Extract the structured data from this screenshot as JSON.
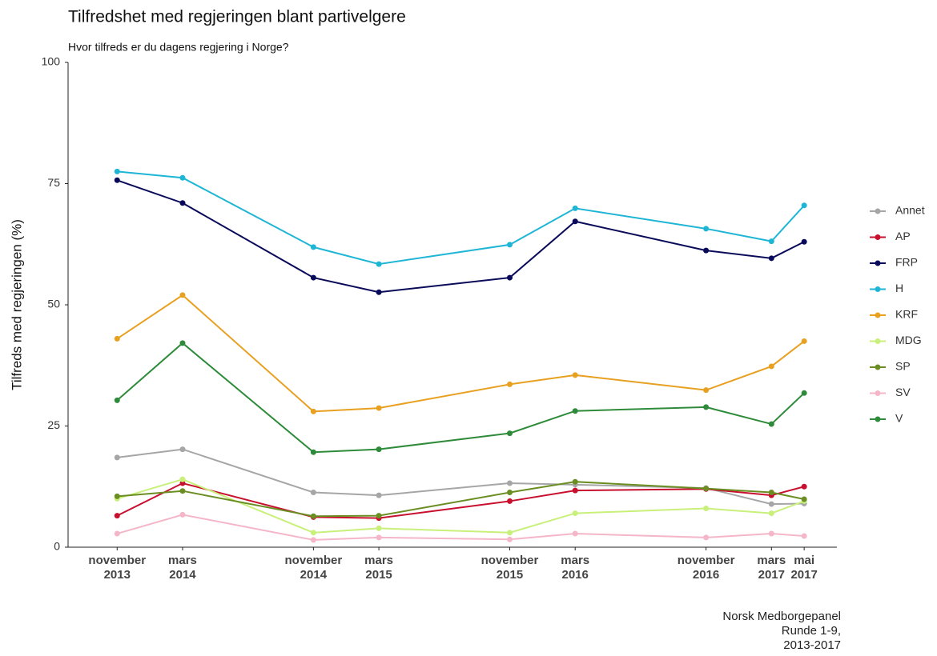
{
  "chart_data": {
    "type": "line",
    "title": "Tilfredshet med regjeringen blant partivelgere",
    "subtitle": "Hvor tilfreds er du dagens regjering i Norge?",
    "y_label": "Tilfreds med regjeringen (%)",
    "caption": [
      "Norsk Medborgepanel",
      "Runde 1-9,",
      "2013-2017"
    ],
    "x": [
      "2013-11",
      "2014-03",
      "2014-11",
      "2015-03",
      "2015-11",
      "2016-03",
      "2016-11",
      "2017-03",
      "2017-05"
    ],
    "xlim": [
      "2013-08",
      "2017-07"
    ],
    "xticks": [
      {
        "value": "2013-11",
        "label": "november 2013"
      },
      {
        "value": "2014-03",
        "label": "mars 2014"
      },
      {
        "value": "2014-11",
        "label": "november 2014"
      },
      {
        "value": "2015-03",
        "label": "mars 2015"
      },
      {
        "value": "2015-11",
        "label": "november 2015"
      },
      {
        "value": "2016-03",
        "label": "mars 2016"
      },
      {
        "value": "2016-11",
        "label": "november 2016"
      },
      {
        "value": "2017-03",
        "label": "mars 2017"
      },
      {
        "value": "2017-05",
        "label": "mai 2017"
      }
    ],
    "ylim": [
      0,
      100
    ],
    "yticks": [
      0,
      25,
      50,
      75,
      100
    ],
    "grid": false,
    "legend": "right",
    "series": [
      {
        "name": "Annet",
        "color": "#a6a6a6",
        "values": [
          18.5,
          20.2,
          11.3,
          10.7,
          13.2,
          12.9,
          12.2,
          8.9,
          9.0
        ]
      },
      {
        "name": "AP",
        "color": "#c8102e",
        "values": [
          6.5,
          13.2,
          6.2,
          6.0,
          9.5,
          11.7,
          12.0,
          10.7,
          12.5
        ]
      },
      {
        "name": "FRP",
        "color": "#0a0a5a",
        "values": [
          75.7,
          71.0,
          55.6,
          52.6,
          55.6,
          67.2,
          61.2,
          59.6,
          63.0
        ]
      },
      {
        "name": "H",
        "color": "#1fb6d6",
        "values": [
          77.5,
          76.2,
          61.9,
          58.4,
          62.4,
          69.9,
          65.7,
          63.1,
          70.5
        ]
      },
      {
        "name": "KRF",
        "color": "#e8a020",
        "values": [
          43.0,
          52.0,
          28.0,
          28.7,
          33.6,
          35.5,
          32.4,
          37.3,
          42.5
        ]
      },
      {
        "name": "MDG",
        "color": "#c8f07a",
        "values": [
          10.0,
          14.0,
          3.0,
          3.9,
          3.0,
          7.0,
          8.0,
          7.0,
          9.5
        ]
      },
      {
        "name": "SP",
        "color": "#6b8e23",
        "values": [
          10.5,
          11.6,
          6.4,
          6.5,
          11.3,
          13.5,
          12.1,
          11.3,
          9.9
        ]
      },
      {
        "name": "SV",
        "color": "#f4b6c8",
        "values": [
          2.8,
          6.7,
          1.5,
          2.0,
          1.6,
          2.8,
          2.0,
          2.8,
          2.3
        ]
      },
      {
        "name": "V",
        "color": "#2e8b3a",
        "values": [
          30.3,
          42.1,
          19.6,
          20.2,
          23.5,
          28.1,
          28.9,
          25.4,
          31.8
        ]
      }
    ]
  }
}
